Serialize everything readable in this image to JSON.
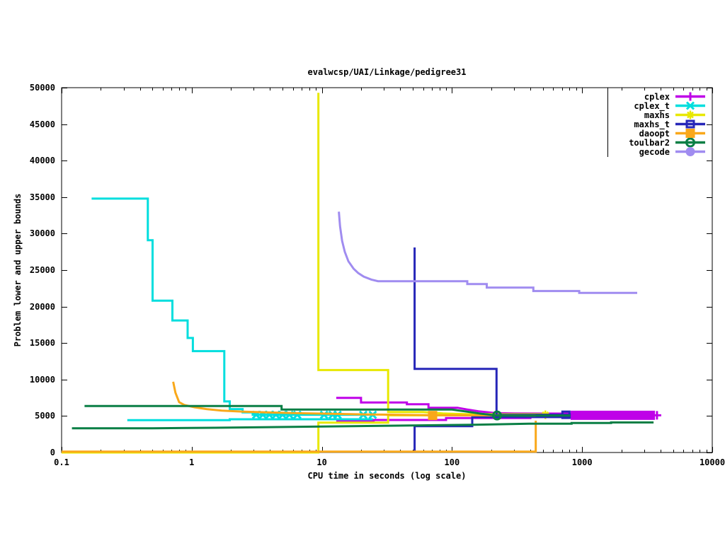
{
  "chart_data": {
    "type": "line",
    "title": "evalwcsp/UAI/Linkage/pedigree31",
    "xlabel": "CPU time in seconds (log scale)",
    "ylabel": "Problem lower and upper bounds",
    "x_scale": "log10",
    "xlim": [
      0.1,
      10000
    ],
    "ylim": [
      0,
      50000
    ],
    "grid": false,
    "legend_position": "top-right-inside",
    "x_ticks": [
      {
        "v": 0.1,
        "label": "0.1"
      },
      {
        "v": 1,
        "label": "1"
      },
      {
        "v": 10,
        "label": "10"
      },
      {
        "v": 100,
        "label": "100"
      },
      {
        "v": 1000,
        "label": "1000"
      },
      {
        "v": 10000,
        "label": "10000"
      }
    ],
    "y_ticks": [
      {
        "v": 0,
        "label": "0"
      },
      {
        "v": 5000,
        "label": "5000"
      },
      {
        "v": 10000,
        "label": "10000"
      },
      {
        "v": 15000,
        "label": "15000"
      },
      {
        "v": 20000,
        "label": "20000"
      },
      {
        "v": 25000,
        "label": "25000"
      },
      {
        "v": 30000,
        "label": "30000"
      },
      {
        "v": 35000,
        "label": "35000"
      },
      {
        "v": 40000,
        "label": "40000"
      },
      {
        "v": 45000,
        "label": "45000"
      },
      {
        "v": 50000,
        "label": "50000"
      }
    ],
    "series": [
      {
        "name": "cplex",
        "color": "#bf00e8",
        "marker": "plus",
        "lines": [
          {
            "pts": [
              [
                12.9,
                7490
              ],
              [
                20,
                7490
              ],
              [
                20,
                6850
              ],
              [
                45,
                6850
              ],
              [
                45,
                6620
              ],
              [
                66,
                6620
              ],
              [
                66,
                6130
              ],
              [
                110,
                6130
              ],
              [
                130,
                5900
              ],
              [
                160,
                5650
              ],
              [
                215,
                5400
              ],
              [
                300,
                5350
              ],
              [
                816,
                5330
              ]
            ]
          },
          {
            "w": 13,
            "pts": [
              [
                816,
                5100
              ],
              [
                3630,
                5100
              ]
            ]
          },
          {
            "pts": [
              [
                12.9,
                4260
              ],
              [
                25,
                4260
              ],
              [
                25,
                4460
              ],
              [
                90,
                4460
              ],
              [
                90,
                4720
              ],
              [
                400,
                4720
              ],
              [
                400,
                4870
              ],
              [
                816,
                4870
              ]
            ]
          }
        ],
        "markers": [
          [
            3760,
            5100
          ]
        ]
      },
      {
        "name": "cplex_t",
        "color": "#00dede",
        "marker": "x",
        "lines": [
          {
            "pts": [
              [
                0.17,
                34800
              ],
              [
                0.46,
                34800
              ],
              [
                0.46,
                29100
              ],
              [
                0.5,
                29100
              ],
              [
                0.5,
                20800
              ],
              [
                0.71,
                20800
              ],
              [
                0.71,
                18100
              ],
              [
                0.93,
                18100
              ],
              [
                0.93,
                15700
              ],
              [
                1.02,
                15700
              ],
              [
                1.02,
                13900
              ],
              [
                1.78,
                13900
              ],
              [
                1.78,
                7000
              ],
              [
                1.96,
                7000
              ],
              [
                1.96,
                5950
              ],
              [
                2.46,
                5950
              ],
              [
                2.46,
                5500
              ],
              [
                2.94,
                5500
              ],
              [
                2.94,
                5170
              ],
              [
                24.6,
                5170
              ]
            ]
          },
          {
            "pts": [
              [
                0.32,
                4430
              ],
              [
                1.96,
                4430
              ],
              [
                1.96,
                4550
              ],
              [
                24.6,
                4550
              ]
            ]
          }
        ],
        "markers": [
          [
            3.13,
            5170
          ],
          [
            3.52,
            5170
          ],
          [
            3.95,
            5170
          ],
          [
            4.44,
            5170
          ],
          [
            4.99,
            5170
          ],
          [
            5.63,
            5170
          ],
          [
            6.47,
            5170
          ],
          [
            10.4,
            5170
          ],
          [
            12.1,
            5170
          ],
          [
            13.2,
            5170
          ],
          [
            20.8,
            5170
          ],
          [
            24.6,
            5170
          ]
        ]
      },
      {
        "name": "maxhs",
        "color": "#e8e800",
        "marker": "star",
        "lines": [
          {
            "pts": [
              [
                0.1,
                0
              ],
              [
                9.4,
                0
              ],
              [
                9.4,
                4100
              ],
              [
                32.3,
                4100
              ],
              [
                32.3,
                5100
              ],
              [
                560,
                5100
              ]
            ]
          },
          {
            "pts": [
              [
                9.4,
                49290
              ],
              [
                9.4,
                11300
              ],
              [
                32.3,
                11300
              ],
              [
                32.3,
                5550
              ],
              [
                60,
                5550
              ],
              [
                85,
                5350
              ],
              [
                130,
                5250
              ],
              [
                560,
                5250
              ]
            ]
          }
        ],
        "markers": [
          [
            522,
            5170
          ]
        ]
      },
      {
        "name": "maxhs_t",
        "color": "#2626b8",
        "marker": "square-open",
        "lines": [
          {
            "pts": [
              [
                51.6,
                28100
              ],
              [
                51.6,
                11460
              ],
              [
                220,
                11460
              ],
              [
                220,
                5170
              ],
              [
                818,
                5170
              ]
            ]
          },
          {
            "pts": [
              [
                51.6,
                150
              ],
              [
                51.6,
                3615
              ],
              [
                143,
                3615
              ],
              [
                143,
                4850
              ],
              [
                818,
                4850
              ]
            ]
          }
        ],
        "markers": [
          [
            751,
            5170
          ]
        ]
      },
      {
        "name": "daoopt",
        "color": "#f9a81a",
        "marker": "square-filled",
        "lines": [
          {
            "pts": [
              [
                0.72,
                9700
              ],
              [
                0.75,
                8200
              ],
              [
                0.8,
                6900
              ],
              [
                0.88,
                6500
              ],
              [
                1.05,
                6200
              ],
              [
                1.3,
                5950
              ],
              [
                1.7,
                5750
              ],
              [
                2.5,
                5600
              ],
              [
                4,
                5480
              ],
              [
                7,
                5380
              ],
              [
                12,
                5300
              ],
              [
                25,
                5200
              ],
              [
                70,
                5120
              ],
              [
                440,
                5070
              ]
            ]
          },
          {
            "pts": [
              [
                0.1,
                120
              ],
              [
                440,
                120
              ],
              [
                440,
                4360
              ]
            ]
          }
        ],
        "markers": [
          [
            71,
            5070
          ]
        ]
      },
      {
        "name": "toulbar2",
        "color": "#0a7f45",
        "marker": "circle-open",
        "lines": [
          {
            "pts": [
              [
                0.15,
                6366
              ],
              [
                4.9,
                6366
              ],
              [
                4.9,
                5880
              ],
              [
                100,
                5880
              ],
              [
                130,
                5600
              ],
              [
                165,
                5330
              ],
              [
                222,
                5070
              ],
              [
                812,
                5070
              ]
            ]
          },
          {
            "pts": [
              [
                0.12,
                3325
              ],
              [
                0.5,
                3325
              ],
              [
                1.5,
                3390
              ],
              [
                50,
                3710
              ],
              [
                150,
                3810
              ],
              [
                390,
                3940
              ],
              [
                830,
                3940
              ],
              [
                830,
                4040
              ],
              [
                1670,
                4040
              ],
              [
                1670,
                4120
              ],
              [
                3540,
                4120
              ]
            ]
          }
        ],
        "markers": [
          [
            222,
            5070
          ]
        ]
      },
      {
        "name": "gecode",
        "color": "#a08cf0",
        "marker": "circle-filled",
        "lines": [
          {
            "pts": [
              [
                13.5,
                33000
              ],
              [
                13.8,
                31000
              ],
              [
                14.3,
                29000
              ],
              [
                15,
                27500
              ],
              [
                16,
                26200
              ],
              [
                17.5,
                25200
              ],
              [
                19,
                24600
              ],
              [
                21,
                24100
              ],
              [
                24,
                23700
              ],
              [
                27,
                23480
              ],
              [
                131,
                23480
              ],
              [
                131,
                23090
              ],
              [
                185,
                23090
              ],
              [
                185,
                22610
              ],
              [
                422,
                22610
              ],
              [
                422,
                22130
              ],
              [
                950,
                22130
              ],
              [
                950,
                21870
              ],
              [
                2650,
                21870
              ]
            ]
          }
        ],
        "markers": []
      }
    ]
  }
}
